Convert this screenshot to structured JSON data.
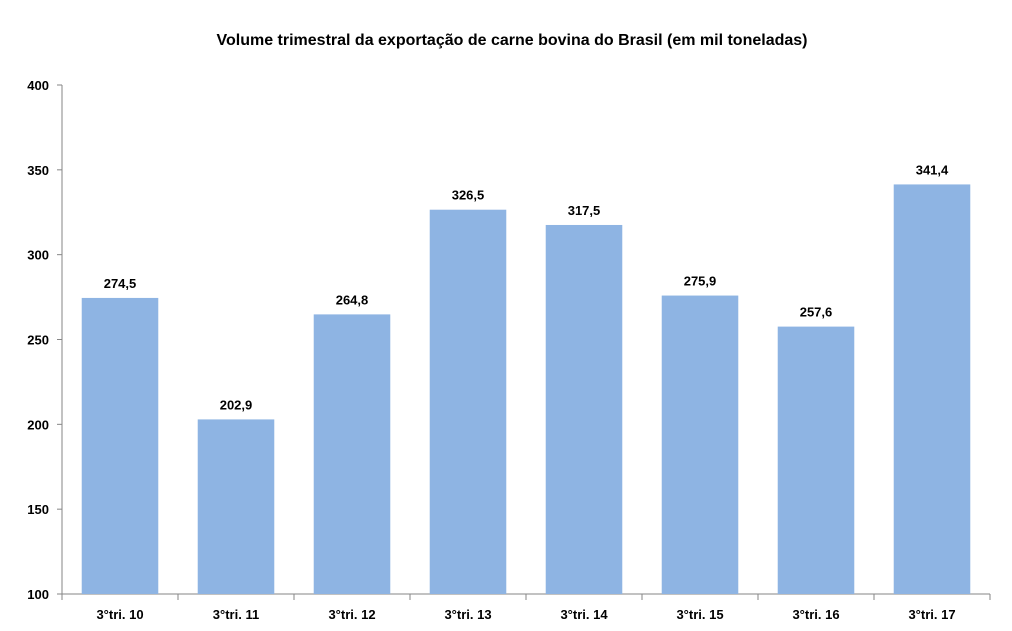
{
  "chart_data": {
    "type": "bar",
    "title": "Volume trimestral da exportação de carne bovina do Brasil (em mil toneladas)",
    "xlabel": "",
    "ylabel": "",
    "categories": [
      "3°tri. 10",
      "3°tri. 11",
      "3°tri. 12",
      "3°tri. 13",
      "3°tri. 14",
      "3°tri. 15",
      "3°tri. 16",
      "3°tri. 17"
    ],
    "values": [
      274.5,
      202.9,
      264.8,
      326.5,
      317.5,
      275.9,
      257.6,
      341.4
    ],
    "value_labels": [
      "274,5",
      "202,9",
      "264,8",
      "326,5",
      "317,5",
      "275,9",
      "257,6",
      "341,4"
    ],
    "ylim": [
      100,
      400
    ],
    "yticks": [
      100,
      150,
      200,
      250,
      300,
      350,
      400
    ],
    "ytick_labels": [
      "100",
      "150",
      "200",
      "250",
      "300",
      "350",
      "400"
    ],
    "grid": false,
    "legend": "none",
    "bar_color": "#8EB4E3",
    "axis_color": "#868686"
  }
}
